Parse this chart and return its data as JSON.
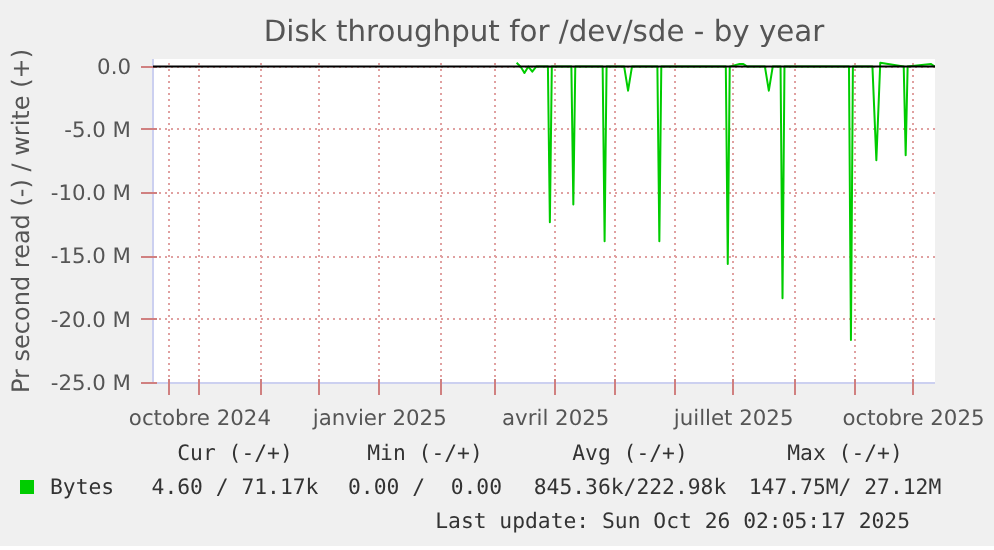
{
  "chart_data": {
    "type": "line",
    "title": "Disk throughput for /dev/sde - by year",
    "ylabel": "Pr second read (-) / write (+)",
    "x": [
      "2025-03-12",
      "2025-03-14",
      "2025-03-16",
      "2025-03-18",
      "2025-03-20",
      "2025-03-22",
      "2025-03-28",
      "2025-03-29",
      "2025-03-30",
      "2025-04-09",
      "2025-04-10",
      "2025-04-11",
      "2025-04-25",
      "2025-04-26",
      "2025-04-27",
      "2025-05-06",
      "2025-05-08",
      "2025-05-10",
      "2025-05-23",
      "2025-05-24",
      "2025-05-25",
      "2025-06-27",
      "2025-06-28",
      "2025-06-29",
      "2025-07-04",
      "2025-07-06",
      "2025-07-08",
      "2025-07-17",
      "2025-07-19",
      "2025-07-21",
      "2025-07-25",
      "2025-07-26",
      "2025-07-27",
      "2025-08-29",
      "2025-08-30",
      "2025-08-31",
      "2025-09-10",
      "2025-09-12",
      "2025-09-14",
      "2025-09-26",
      "2025-09-27",
      "2025-09-28",
      "2025-10-10",
      "2025-10-12"
    ],
    "series": [
      {
        "name": "Bytes",
        "color": "#00cc00",
        "values": [
          0.3,
          0,
          -0.5,
          0,
          -0.4,
          0,
          0,
          -12.3,
          0,
          0,
          -10.9,
          0,
          0,
          -13.8,
          0,
          0,
          -1.9,
          0,
          0,
          -13.8,
          0,
          0,
          -15.6,
          0,
          0.2,
          0.2,
          0,
          0,
          -1.9,
          0,
          0,
          -18.3,
          0,
          0,
          -21.6,
          0,
          0,
          -7.4,
          0.3,
          0,
          -7.0,
          0,
          0.2,
          0
        ]
      }
    ],
    "xlim": [
      "2024-09-07",
      "2025-10-12"
    ],
    "xticks": [
      {
        "value": "2024-09-15",
        "label": null
      },
      {
        "value": "2024-10-01",
        "label": "octobre 2024"
      },
      {
        "value": "2024-11-01",
        "label": null
      },
      {
        "value": "2024-12-01",
        "label": null
      },
      {
        "value": "2025-01-01",
        "label": "janvier 2025"
      },
      {
        "value": "2025-02-01",
        "label": null
      },
      {
        "value": "2025-03-01",
        "label": null
      },
      {
        "value": "2025-04-01",
        "label": "avril 2025"
      },
      {
        "value": "2025-05-01",
        "label": null
      },
      {
        "value": "2025-06-01",
        "label": null
      },
      {
        "value": "2025-07-01",
        "label": "juillet 2025"
      },
      {
        "value": "2025-08-01",
        "label": null
      },
      {
        "value": "2025-09-01",
        "label": null
      },
      {
        "value": "2025-10-01",
        "label": "octobre 2025"
      }
    ],
    "ylim": [
      -25,
      0.6
    ],
    "yticks": [
      {
        "value": 0,
        "label": "0.0"
      },
      {
        "value": -5,
        "label": "-5.0 M"
      },
      {
        "value": -10,
        "label": "-10.0 M"
      },
      {
        "value": -15,
        "label": "-15.0 M"
      },
      {
        "value": -20,
        "label": "-20.0 M"
      },
      {
        "value": -25,
        "label": "-25.0 M"
      }
    ],
    "ref_lines": [
      {
        "axis": "y",
        "value": 0,
        "color": "#000000"
      }
    ],
    "grid": true,
    "legend": "bottom",
    "annotations": [
      "Cur (-/+)",
      "Min (-/+)",
      "Avg (-/+)",
      "Max (-/+)",
      "4.60 / 71.17k",
      "0.00 /  0.00",
      "845.36k/222.98k",
      "147.75M/ 27.12M",
      "Last update: Sun Oct 26 02:05:17 2025"
    ]
  }
}
